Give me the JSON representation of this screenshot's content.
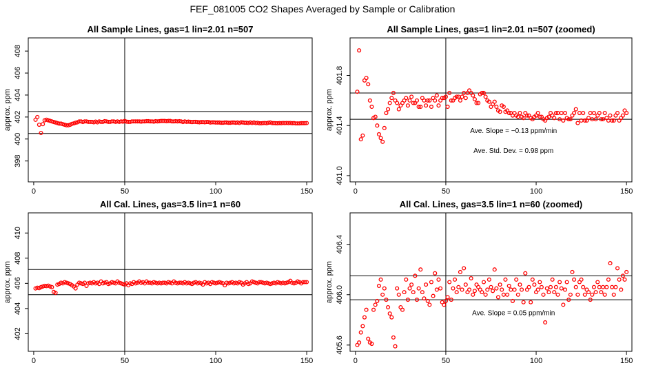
{
  "figure": {
    "title": "FEF_081005  CO2 Shapes Averaged by Sample or Calibration"
  },
  "chart_data": [
    {
      "type": "scatter",
      "title": "All Sample Lines, gas=1 lin=2.01 n=507",
      "xlabel": "",
      "ylabel": "approx. ppm",
      "xlim": [
        -3,
        153
      ],
      "ylim": [
        396.1,
        409.2
      ],
      "xticks": [
        0,
        50,
        100,
        150
      ],
      "yticks": [
        398,
        400,
        402,
        404,
        406,
        408
      ],
      "hlines": [
        400.5,
        402.5
      ],
      "vline": 50,
      "annotations": [],
      "x": [
        1,
        2,
        3,
        4,
        5,
        6,
        7,
        8,
        9,
        10,
        11,
        12,
        13,
        14,
        15,
        16,
        17,
        18,
        19,
        20,
        21,
        22,
        23,
        24,
        25,
        26,
        27,
        28,
        29,
        30,
        31,
        32,
        33,
        34,
        35,
        36,
        37,
        38,
        39,
        40,
        41,
        42,
        43,
        44,
        45,
        46,
        47,
        48,
        49,
        50,
        51,
        52,
        53,
        54,
        55,
        56,
        57,
        58,
        59,
        60,
        61,
        62,
        63,
        64,
        65,
        66,
        67,
        68,
        69,
        70,
        71,
        72,
        73,
        74,
        75,
        76,
        77,
        78,
        79,
        80,
        81,
        82,
        83,
        84,
        85,
        86,
        87,
        88,
        89,
        90,
        91,
        92,
        93,
        94,
        95,
        96,
        97,
        98,
        99,
        100,
        101,
        102,
        103,
        104,
        105,
        106,
        107,
        108,
        109,
        110,
        111,
        112,
        113,
        114,
        115,
        116,
        117,
        118,
        119,
        120,
        121,
        122,
        123,
        124,
        125,
        126,
        127,
        128,
        129,
        130,
        131,
        132,
        133,
        134,
        135,
        136,
        137,
        138,
        139,
        140,
        141,
        142,
        143,
        144,
        145,
        146,
        147,
        148,
        149,
        150
      ],
      "y": [
        401.75,
        402.0,
        401.3,
        400.55,
        401.35,
        401.7,
        401.75,
        401.7,
        401.65,
        401.6,
        401.55,
        401.5,
        401.45,
        401.4,
        401.4,
        401.35,
        401.3,
        401.25,
        401.25,
        401.3,
        401.38,
        401.42,
        401.48,
        401.52,
        401.6,
        401.6,
        401.55,
        401.6,
        401.6,
        401.56,
        401.56,
        401.56,
        401.52,
        401.58,
        401.52,
        401.6,
        401.56,
        401.56,
        401.62,
        401.6,
        401.56,
        401.56,
        401.6,
        401.6,
        401.56,
        401.6,
        401.56,
        401.6,
        401.58,
        401.64,
        401.58,
        401.56,
        401.56,
        401.6,
        401.6,
        401.6,
        401.6,
        401.6,
        401.58,
        401.6,
        401.6,
        401.62,
        401.62,
        401.6,
        401.6,
        401.58,
        401.62,
        401.6,
        401.62,
        401.64,
        401.64,
        401.64,
        401.62,
        401.64,
        401.64,
        401.6,
        401.6,
        401.62,
        401.6,
        401.62,
        401.6,
        401.55,
        401.6,
        401.56,
        401.58,
        401.56,
        401.54,
        401.56,
        401.56,
        401.54,
        401.52,
        401.54,
        401.54,
        401.52,
        401.55,
        401.55,
        401.5,
        401.52,
        401.52,
        401.5,
        401.5,
        401.5,
        401.48,
        401.48,
        401.5,
        401.5,
        401.48,
        401.48,
        401.5,
        401.5,
        401.48,
        401.5,
        401.46,
        401.52,
        401.5,
        401.48,
        401.48,
        401.46,
        401.5,
        401.46,
        401.5,
        401.45,
        401.47,
        401.43,
        401.43,
        401.45,
        401.46,
        401.44,
        401.48,
        401.5,
        401.45,
        401.45,
        401.44,
        401.43,
        401.45,
        401.44,
        401.46,
        401.45,
        401.46,
        401.45,
        401.46,
        401.44,
        401.45,
        401.42,
        401.42,
        401.42,
        401.44,
        401.44,
        401.44,
        401.45
      ]
    },
    {
      "type": "scatter",
      "title": "All Sample Lines, gas=1 lin=2.01 n=507 (zoomed)",
      "xlabel": "",
      "ylabel": "approx. ppm",
      "xlim": [
        -3,
        153
      ],
      "ylim": [
        400.95,
        402.1
      ],
      "xticks": [
        0,
        50,
        100,
        150
      ],
      "yticks": [
        401.0,
        401.4,
        401.8
      ],
      "hlines": [
        401.45,
        401.66
      ],
      "vline": 50,
      "annotations": [
        "Ave. Slope =  −0.13  ppm/min",
        "Ave. Std. Dev. =  0.98  ppm"
      ],
      "x": [
        1,
        2,
        3,
        4,
        5,
        6,
        7,
        8,
        9,
        10,
        11,
        12,
        13,
        14,
        15,
        16,
        17,
        18,
        19,
        20,
        21,
        22,
        23,
        24,
        25,
        26,
        27,
        28,
        29,
        30,
        31,
        32,
        33,
        34,
        35,
        36,
        37,
        38,
        39,
        40,
        41,
        42,
        43,
        44,
        45,
        46,
        47,
        48,
        49,
        50,
        51,
        52,
        53,
        54,
        55,
        56,
        57,
        58,
        59,
        60,
        61,
        62,
        63,
        64,
        65,
        66,
        67,
        68,
        69,
        70,
        71,
        72,
        73,
        74,
        75,
        76,
        77,
        78,
        79,
        80,
        81,
        82,
        83,
        84,
        85,
        86,
        87,
        88,
        89,
        90,
        91,
        92,
        93,
        94,
        95,
        96,
        97,
        98,
        99,
        100,
        101,
        102,
        103,
        104,
        105,
        106,
        107,
        108,
        109,
        110,
        111,
        112,
        113,
        114,
        115,
        116,
        117,
        118,
        119,
        120,
        121,
        122,
        123,
        124,
        125,
        126,
        127,
        128,
        129,
        130,
        131,
        132,
        133,
        134,
        135,
        136,
        137,
        138,
        139,
        140,
        141,
        142,
        143,
        144,
        145,
        146,
        147,
        148,
        149,
        150
      ],
      "y": [
        401.67,
        402.0,
        401.29,
        401.32,
        401.76,
        401.78,
        401.73,
        401.6,
        401.55,
        401.46,
        401.47,
        401.4,
        401.33,
        401.3,
        401.27,
        401.38,
        401.5,
        401.53,
        401.58,
        401.62,
        401.66,
        401.6,
        401.58,
        401.53,
        401.56,
        401.58,
        401.6,
        401.62,
        401.56,
        401.6,
        401.63,
        401.58,
        401.58,
        401.6,
        401.55,
        401.55,
        401.62,
        401.6,
        401.56,
        401.6,
        401.6,
        401.55,
        401.62,
        401.6,
        401.64,
        401.56,
        401.6,
        401.62,
        401.62,
        401.63,
        401.55,
        401.66,
        401.6,
        401.6,
        401.62,
        401.63,
        401.63,
        401.6,
        401.63,
        401.66,
        401.62,
        401.66,
        401.68,
        401.66,
        401.64,
        401.61,
        401.58,
        401.58,
        401.65,
        401.66,
        401.66,
        401.63,
        401.6,
        401.59,
        401.55,
        401.57,
        401.59,
        401.55,
        401.52,
        401.51,
        401.56,
        401.55,
        401.51,
        401.52,
        401.5,
        401.5,
        401.48,
        401.5,
        401.48,
        401.47,
        401.5,
        401.47,
        401.46,
        401.5,
        401.48,
        401.48,
        401.46,
        401.45,
        401.47,
        401.48,
        401.5,
        401.47,
        401.47,
        401.45,
        401.44,
        401.46,
        401.47,
        401.5,
        401.48,
        401.46,
        401.5,
        401.5,
        401.45,
        401.5,
        401.44,
        401.5,
        401.46,
        401.45,
        401.45,
        401.48,
        401.5,
        401.53,
        401.42,
        401.5,
        401.44,
        401.5,
        401.44,
        401.44,
        401.46,
        401.5,
        401.45,
        401.5,
        401.45,
        401.48,
        401.5,
        401.45,
        401.45,
        401.5,
        401.46,
        401.44,
        401.48,
        401.44,
        401.44,
        401.48,
        401.5,
        401.44,
        401.46,
        401.48,
        401.52,
        401.5
      ]
    },
    {
      "type": "scatter",
      "title": "All Cal. Lines, gas=3.5 lin=1 n=60",
      "xlabel": "",
      "ylabel": "approx. ppm",
      "xlim": [
        -3,
        153
      ],
      "ylim": [
        400.6,
        411.6
      ],
      "xticks": [
        0,
        50,
        100,
        150
      ],
      "yticks": [
        402,
        404,
        406,
        408,
        410
      ],
      "hlines": [
        405.1,
        407.1
      ],
      "vline": 50,
      "annotations": [],
      "x": [
        1,
        2,
        3,
        4,
        5,
        6,
        7,
        8,
        9,
        10,
        11,
        12,
        13,
        14,
        15,
        16,
        17,
        18,
        19,
        20,
        21,
        22,
        23,
        24,
        25,
        26,
        27,
        28,
        29,
        30,
        31,
        32,
        33,
        34,
        35,
        36,
        37,
        38,
        39,
        40,
        41,
        42,
        43,
        44,
        45,
        46,
        47,
        48,
        49,
        50,
        51,
        52,
        53,
        54,
        55,
        56,
        57,
        58,
        59,
        60,
        61,
        62,
        63,
        64,
        65,
        66,
        67,
        68,
        69,
        70,
        71,
        72,
        73,
        74,
        75,
        76,
        77,
        78,
        79,
        80,
        81,
        82,
        83,
        84,
        85,
        86,
        87,
        88,
        89,
        90,
        91,
        92,
        93,
        94,
        95,
        96,
        97,
        98,
        99,
        100,
        101,
        102,
        103,
        104,
        105,
        106,
        107,
        108,
        109,
        110,
        111,
        112,
        113,
        114,
        115,
        116,
        117,
        118,
        119,
        120,
        121,
        122,
        123,
        124,
        125,
        126,
        127,
        128,
        129,
        130,
        131,
        132,
        133,
        134,
        135,
        136,
        137,
        138,
        139,
        140,
        141,
        142,
        143,
        144,
        145,
        146,
        147,
        148,
        149,
        150
      ],
      "y": [
        405.6,
        405.65,
        405.62,
        405.7,
        405.75,
        405.8,
        405.78,
        405.82,
        405.75,
        405.7,
        405.32,
        405.25,
        405.9,
        405.95,
        406.05,
        406.0,
        406.1,
        406.05,
        406.0,
        405.95,
        405.85,
        405.75,
        405.6,
        405.9,
        406.05,
        406.0,
        405.95,
        406.05,
        405.8,
        406.0,
        406.05,
        406.0,
        406.1,
        406.0,
        406.05,
        405.95,
        406.15,
        406.0,
        406.05,
        406.1,
        405.95,
        406.0,
        406.1,
        406.05,
        406.0,
        406.15,
        406.05,
        406.0,
        405.95,
        405.9,
        406.0,
        405.85,
        406.0,
        405.95,
        406.1,
        406.0,
        406.05,
        406.15,
        406.05,
        406.1,
        406.0,
        406.15,
        406.05,
        406.05,
        406.0,
        406.1,
        406.05,
        406.0,
        406.05,
        406.0,
        406.05,
        406.05,
        406.0,
        406.1,
        406.05,
        406.0,
        406.15,
        406.05,
        406.0,
        406.05,
        406.05,
        406.0,
        406.1,
        406.0,
        406.05,
        406.0,
        405.95,
        406.05,
        406.1,
        406.0,
        406.05,
        406.0,
        405.9,
        406.1,
        406.0,
        406.05,
        405.95,
        406.1,
        406.05,
        406.0,
        406.05,
        406.1,
        406.05,
        406.0,
        405.85,
        406.05,
        406.0,
        406.05,
        406.1,
        406.0,
        406.05,
        406.0,
        406.1,
        406.05,
        405.9,
        406.0,
        406.1,
        405.95,
        406.0,
        406.15,
        406.1,
        406.05,
        406.0,
        406.1,
        406.1,
        406.05,
        406.0,
        406.05,
        406.0,
        405.95,
        406.0,
        406.05,
        406.0,
        406.1,
        406.05,
        406.0,
        406.05,
        406.0,
        406.05,
        406.1,
        406.2,
        406.05,
        406.0,
        406.05,
        406.15,
        406.1,
        406.0,
        406.1,
        406.1,
        406.1
      ]
    },
    {
      "type": "scatter",
      "title": "All Cal. Lines, gas=3.5 lin=1 n=60 (zoomed)",
      "xlabel": "",
      "ylabel": "approx. ppm",
      "xlim": [
        -3,
        153
      ],
      "ylim": [
        405.55,
        406.65
      ],
      "xticks": [
        0,
        50,
        100,
        150
      ],
      "yticks": [
        405.6,
        406.0,
        406.4
      ],
      "hlines": [
        405.96,
        406.15
      ],
      "vline": 50,
      "annotations": [
        "Ave. Slope =  0.05  ppm/min"
      ],
      "x": [
        1,
        2,
        3,
        4,
        5,
        6,
        7,
        8,
        9,
        10,
        11,
        12,
        13,
        14,
        15,
        16,
        17,
        18,
        19,
        20,
        21,
        22,
        23,
        24,
        25,
        26,
        27,
        28,
        29,
        30,
        31,
        32,
        33,
        34,
        35,
        36,
        37,
        38,
        39,
        40,
        41,
        42,
        43,
        44,
        45,
        46,
        47,
        48,
        49,
        50,
        51,
        52,
        53,
        54,
        55,
        56,
        57,
        58,
        59,
        60,
        61,
        62,
        63,
        64,
        65,
        66,
        67,
        68,
        69,
        70,
        71,
        72,
        73,
        74,
        75,
        76,
        77,
        78,
        79,
        80,
        81,
        82,
        83,
        84,
        85,
        86,
        87,
        88,
        89,
        90,
        91,
        92,
        93,
        94,
        95,
        96,
        97,
        98,
        99,
        100,
        101,
        102,
        103,
        104,
        105,
        106,
        107,
        108,
        109,
        110,
        111,
        112,
        113,
        114,
        115,
        116,
        117,
        118,
        119,
        120,
        121,
        122,
        123,
        124,
        125,
        126,
        127,
        128,
        129,
        130,
        131,
        132,
        133,
        134,
        135,
        136,
        137,
        138,
        139,
        140,
        141,
        142,
        143,
        144,
        145,
        146,
        147,
        148,
        149,
        150
      ],
      "y": [
        405.6,
        405.62,
        405.7,
        405.75,
        405.82,
        405.88,
        405.65,
        405.62,
        405.61,
        405.88,
        405.92,
        405.95,
        406.07,
        406.12,
        406.0,
        406.05,
        405.96,
        405.9,
        405.85,
        405.82,
        405.66,
        405.59,
        406.05,
        406.0,
        405.9,
        405.88,
        406.02,
        406.12,
        405.96,
        406.05,
        406.08,
        406.02,
        406.15,
        405.96,
        406.05,
        406.2,
        406.02,
        405.97,
        406.08,
        405.95,
        405.92,
        406.1,
        405.99,
        406.17,
        406.04,
        406.12,
        406.05,
        405.94,
        405.92,
        405.95,
        405.98,
        406.1,
        405.96,
        406.05,
        406.12,
        406.02,
        406.06,
        406.18,
        406.04,
        406.21,
        406.08,
        406.02,
        406.04,
        406.13,
        406.0,
        406.03,
        406.08,
        406.06,
        406.04,
        406.02,
        406.1,
        406.0,
        406.04,
        406.12,
        406.06,
        406.03,
        406.2,
        406.05,
        405.98,
        406.08,
        406.04,
        406.0,
        406.12,
        406.0,
        406.07,
        406.04,
        405.95,
        406.04,
        406.12,
        406.0,
        406.08,
        406.04,
        405.94,
        406.17,
        406.04,
        406.06,
        405.94,
        406.12,
        406.08,
        406.02,
        406.04,
        406.1,
        406.06,
        406.0,
        405.78,
        406.05,
        406.02,
        406.06,
        406.12,
        406.02,
        406.06,
        406.0,
        406.1,
        406.05,
        405.92,
        406.04,
        406.1,
        405.96,
        406.0,
        406.18,
        406.12,
        406.06,
        406.0,
        406.1,
        406.12,
        406.06,
        406.0,
        406.04,
        406.02,
        405.96,
        406.0,
        406.06,
        406.02,
        406.1,
        406.06,
        406.02,
        406.06,
        406.0,
        406.06,
        406.12,
        406.25,
        406.06,
        406.0,
        406.06,
        406.21,
        406.12,
        406.04,
        406.15,
        406.12,
        406.18
      ]
    }
  ]
}
